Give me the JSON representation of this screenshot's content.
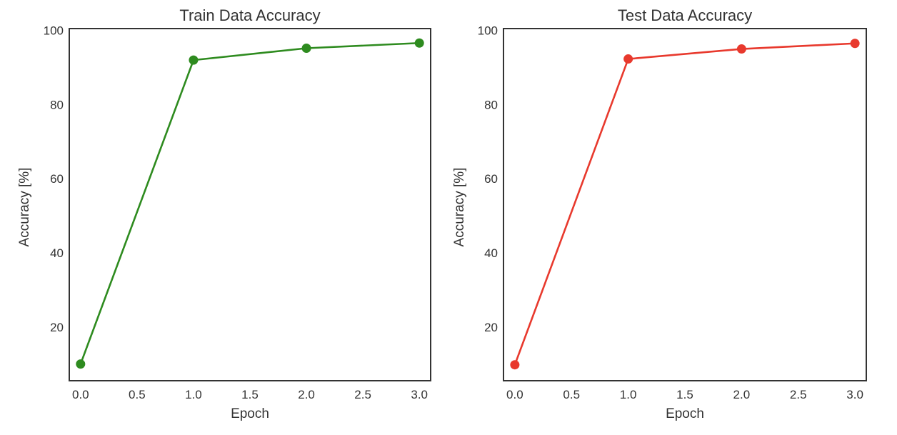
{
  "chart_data": [
    {
      "type": "line",
      "title": "Train Data Accuracy",
      "xlabel": "Epoch",
      "ylabel": "Accuracy [%]",
      "x": [
        0,
        1,
        2,
        3
      ],
      "series": [
        {
          "values": [
            10.0,
            92.0,
            95.2,
            96.6
          ],
          "color": "#2e8b1f"
        }
      ],
      "xlim": [
        -0.1,
        3.1
      ],
      "ylim": [
        5.5,
        100.5
      ],
      "xticks": [
        0.0,
        0.5,
        1.0,
        1.5,
        2.0,
        2.5,
        3.0
      ],
      "xtick_labels": [
        "0.0",
        "0.5",
        "1.0",
        "1.5",
        "2.0",
        "2.5",
        "3.0"
      ],
      "yticks": [
        20,
        40,
        60,
        80,
        100
      ],
      "ytick_labels": [
        "20",
        "40",
        "60",
        "80",
        "100"
      ],
      "marker": "circle",
      "grid": false
    },
    {
      "type": "line",
      "title": "Test Data Accuracy",
      "xlabel": "Epoch",
      "ylabel": "Accuracy [%]",
      "x": [
        0,
        1,
        2,
        3
      ],
      "series": [
        {
          "values": [
            9.8,
            92.3,
            95.0,
            96.5
          ],
          "color": "#e8392d"
        }
      ],
      "xlim": [
        -0.1,
        3.1
      ],
      "ylim": [
        5.5,
        100.5
      ],
      "xticks": [
        0.0,
        0.5,
        1.0,
        1.5,
        2.0,
        2.5,
        3.0
      ],
      "xtick_labels": [
        "0.0",
        "0.5",
        "1.0",
        "1.5",
        "2.0",
        "2.5",
        "3.0"
      ],
      "yticks": [
        20,
        40,
        60,
        80,
        100
      ],
      "ytick_labels": [
        "20",
        "40",
        "60",
        "80",
        "100"
      ],
      "marker": "circle",
      "grid": false
    }
  ]
}
